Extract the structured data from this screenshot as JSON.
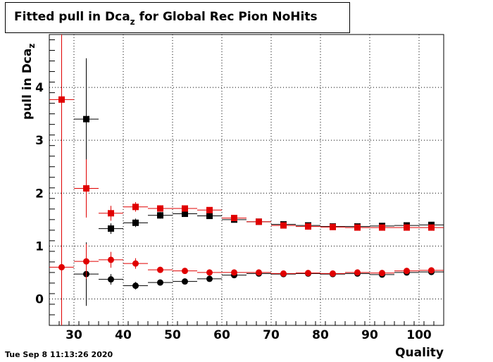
{
  "title": {
    "main": "Fitted pull in Dca",
    "sub": "z",
    "rest": " for Global Rec Pion NoHits"
  },
  "ylabel": {
    "main": "pull in Dca",
    "sub": "z"
  },
  "xlabel": "Quality",
  "timestamp": "Tue Sep  8 11:13:26 2020",
  "chart_data": {
    "type": "scatter",
    "xlim": [
      25,
      105
    ],
    "ylim": [
      -0.5,
      5.0
    ],
    "xticks": [
      30,
      40,
      50,
      60,
      70,
      80,
      90,
      100
    ],
    "yticks": [
      0,
      1,
      2,
      3,
      4
    ],
    "grid": true,
    "series": [
      {
        "color": "#000000",
        "marker": "square",
        "points": [
          {
            "x": 32.5,
            "y": 3.4,
            "yerr": 1.15
          },
          {
            "x": 37.5,
            "y": 1.33,
            "yerr": 0.1
          },
          {
            "x": 42.5,
            "y": 1.44,
            "yerr": 0.08
          },
          {
            "x": 47.5,
            "y": 1.58,
            "yerr": 0.06
          },
          {
            "x": 52.5,
            "y": 1.61,
            "yerr": 0.04
          },
          {
            "x": 57.5,
            "y": 1.57,
            "yerr": 0.03
          },
          {
            "x": 62.5,
            "y": 1.5,
            "yerr": 0.03
          },
          {
            "x": 67.5,
            "y": 1.46,
            "yerr": 0.02
          },
          {
            "x": 72.5,
            "y": 1.41,
            "yerr": 0.02
          },
          {
            "x": 77.5,
            "y": 1.39,
            "yerr": 0.02
          },
          {
            "x": 82.5,
            "y": 1.37,
            "yerr": 0.02
          },
          {
            "x": 87.5,
            "y": 1.37,
            "yerr": 0.02
          },
          {
            "x": 92.5,
            "y": 1.38,
            "yerr": 0.02
          },
          {
            "x": 97.5,
            "y": 1.39,
            "yerr": 0.02
          },
          {
            "x": 102.5,
            "y": 1.4,
            "yerr": 0.02
          }
        ]
      },
      {
        "color": "#e00000",
        "marker": "square",
        "points": [
          {
            "x": 27.5,
            "y": 3.77,
            "yerr": 1.3
          },
          {
            "x": 32.5,
            "y": 2.09,
            "yerr": 0.55
          },
          {
            "x": 37.5,
            "y": 1.62,
            "yerr": 0.14
          },
          {
            "x": 42.5,
            "y": 1.74,
            "yerr": 0.09
          },
          {
            "x": 47.5,
            "y": 1.71,
            "yerr": 0.06
          },
          {
            "x": 52.5,
            "y": 1.71,
            "yerr": 0.05
          },
          {
            "x": 57.5,
            "y": 1.68,
            "yerr": 0.04
          },
          {
            "x": 62.5,
            "y": 1.53,
            "yerr": 0.03
          },
          {
            "x": 67.5,
            "y": 1.46,
            "yerr": 0.03
          },
          {
            "x": 72.5,
            "y": 1.39,
            "yerr": 0.02
          },
          {
            "x": 77.5,
            "y": 1.37,
            "yerr": 0.02
          },
          {
            "x": 82.5,
            "y": 1.36,
            "yerr": 0.02
          },
          {
            "x": 87.5,
            "y": 1.35,
            "yerr": 0.02
          },
          {
            "x": 92.5,
            "y": 1.35,
            "yerr": 0.02
          },
          {
            "x": 97.5,
            "y": 1.35,
            "yerr": 0.02
          },
          {
            "x": 102.5,
            "y": 1.35,
            "yerr": 0.02
          }
        ]
      },
      {
        "color": "#000000",
        "marker": "circle",
        "points": [
          {
            "x": 32.5,
            "y": 0.47,
            "yerr": 0.6
          },
          {
            "x": 37.5,
            "y": 0.37,
            "yerr": 0.1
          },
          {
            "x": 42.5,
            "y": 0.25,
            "yerr": 0.07
          },
          {
            "x": 47.5,
            "y": 0.31,
            "yerr": 0.05
          },
          {
            "x": 52.5,
            "y": 0.33,
            "yerr": 0.03
          },
          {
            "x": 57.5,
            "y": 0.38,
            "yerr": 0.03
          },
          {
            "x": 62.5,
            "y": 0.45,
            "yerr": 0.02
          },
          {
            "x": 67.5,
            "y": 0.48,
            "yerr": 0.02
          },
          {
            "x": 72.5,
            "y": 0.47,
            "yerr": 0.02
          },
          {
            "x": 77.5,
            "y": 0.48,
            "yerr": 0.02
          },
          {
            "x": 82.5,
            "y": 0.47,
            "yerr": 0.02
          },
          {
            "x": 87.5,
            "y": 0.48,
            "yerr": 0.02
          },
          {
            "x": 92.5,
            "y": 0.46,
            "yerr": 0.02
          },
          {
            "x": 97.5,
            "y": 0.5,
            "yerr": 0.02
          },
          {
            "x": 102.5,
            "y": 0.51,
            "yerr": 0.02
          }
        ]
      },
      {
        "color": "#e00000",
        "marker": "circle",
        "points": [
          {
            "x": 27.5,
            "y": 0.6,
            "yerr": 7.0
          },
          {
            "x": 32.5,
            "y": 0.71,
            "yerr": 0.33
          },
          {
            "x": 37.5,
            "y": 0.74,
            "yerr": 0.15
          },
          {
            "x": 42.5,
            "y": 0.67,
            "yerr": 0.1
          },
          {
            "x": 47.5,
            "y": 0.55,
            "yerr": 0.05
          },
          {
            "x": 52.5,
            "y": 0.53,
            "yerr": 0.04
          },
          {
            "x": 57.5,
            "y": 0.5,
            "yerr": 0.03
          },
          {
            "x": 62.5,
            "y": 0.5,
            "yerr": 0.02
          },
          {
            "x": 67.5,
            "y": 0.5,
            "yerr": 0.02
          },
          {
            "x": 72.5,
            "y": 0.48,
            "yerr": 0.02
          },
          {
            "x": 77.5,
            "y": 0.49,
            "yerr": 0.02
          },
          {
            "x": 82.5,
            "y": 0.48,
            "yerr": 0.02
          },
          {
            "x": 87.5,
            "y": 0.5,
            "yerr": 0.02
          },
          {
            "x": 92.5,
            "y": 0.49,
            "yerr": 0.02
          },
          {
            "x": 97.5,
            "y": 0.53,
            "yerr": 0.02
          },
          {
            "x": 102.5,
            "y": 0.54,
            "yerr": 0.02
          }
        ]
      }
    ]
  }
}
